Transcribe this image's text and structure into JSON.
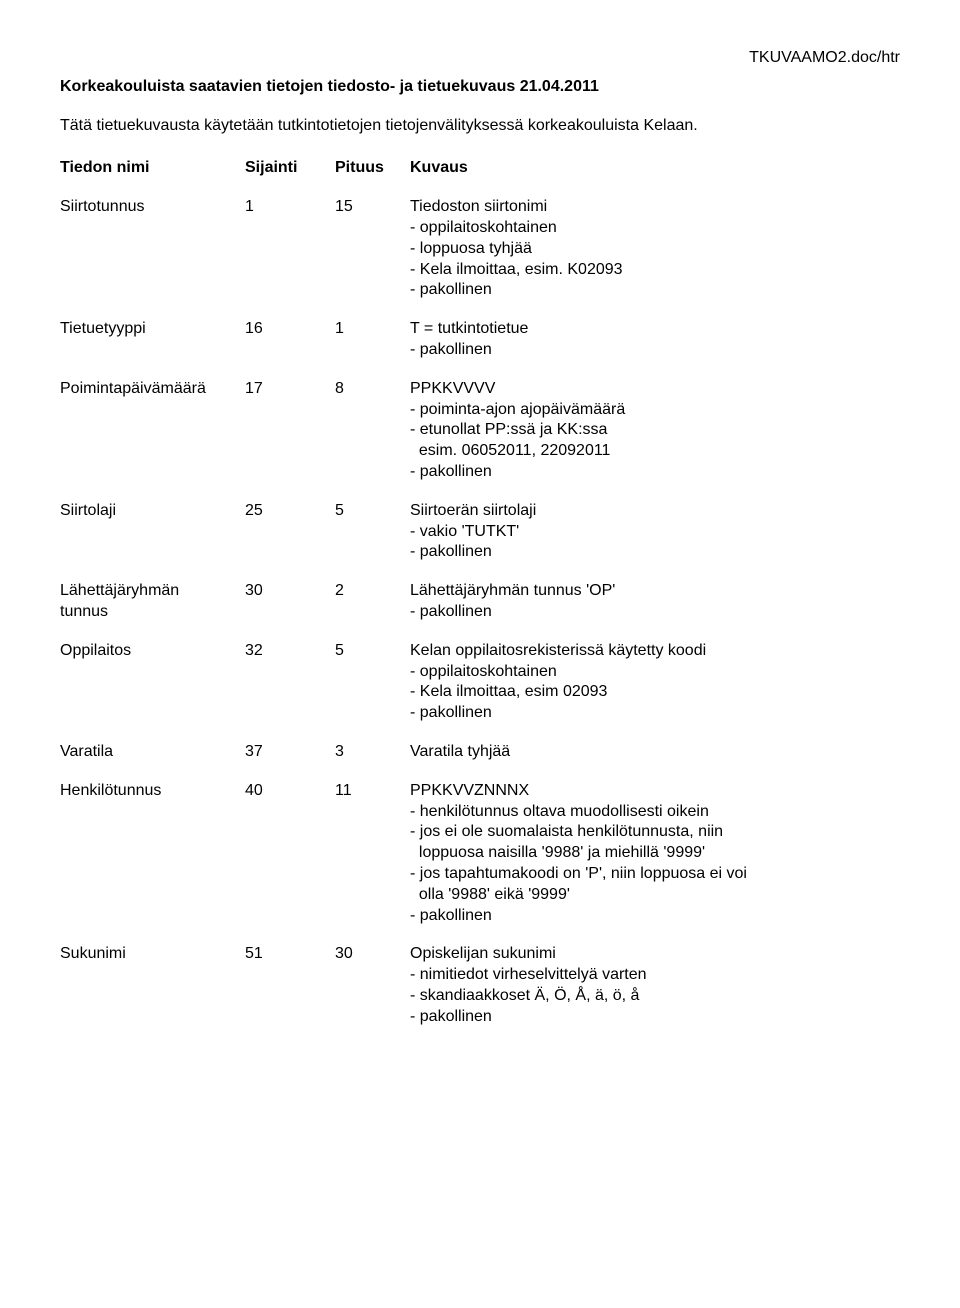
{
  "doc_header": "TKUVAAMO2.doc/htr",
  "title": "Korkeakouluista saatavien tietojen tiedosto- ja tietuekuvaus  21.04.2011",
  "intro": "Tätä tietuekuvausta käytetään tutkintotietojen tietojenvälityksessä korkeakouluista Kelaan.",
  "columns": {
    "c1": "Tiedon nimi",
    "c2": "Sijainti",
    "c3": "Pituus",
    "c4": "Kuvaus"
  },
  "rows": [
    {
      "name": "Siirtotunnus",
      "pos": "1",
      "len": "15",
      "desc": "Tiedoston siirtonimi\n- oppilaitoskohtainen\n- loppuosa tyhjää\n- Kela ilmoittaa, esim. K02093\n- pakollinen"
    },
    {
      "name": "Tietuetyyppi",
      "pos": "16",
      "len": "1",
      "desc": "T = tutkintotietue\n- pakollinen"
    },
    {
      "name": "Poimintapäivämäärä",
      "pos": "17",
      "len": "8",
      "desc": "PPKKVVVV\n- poiminta-ajon ajopäivämäärä\n- etunollat PP:ssä ja KK:ssa\n  esim. 06052011, 22092011\n- pakollinen"
    },
    {
      "name": "Siirtolaji",
      "pos": "25",
      "len": "5",
      "desc": "Siirtoerän siirtolaji\n- vakio 'TUTKT'\n- pakollinen"
    },
    {
      "name": "Lähettäjäryhmän\ntunnus",
      "pos": "30",
      "len": "2",
      "desc": "Lähettäjäryhmän tunnus 'OP'\n- pakollinen"
    },
    {
      "name": "Oppilaitos",
      "pos": "32",
      "len": "5",
      "desc": "Kelan oppilaitosrekisterissä käytetty koodi\n- oppilaitoskohtainen\n- Kela ilmoittaa, esim 02093\n- pakollinen"
    },
    {
      "name": "Varatila",
      "pos": "37",
      "len": "3",
      "desc": "Varatila tyhjää"
    },
    {
      "name": "Henkilötunnus",
      "pos": "40",
      "len": "11",
      "desc": "PPKKVVZNNNX\n- henkilötunnus oltava muodollisesti oikein\n- jos ei ole suomalaista henkilötunnusta, niin\n  loppuosa naisilla '9988' ja miehillä '9999'\n- jos tapahtumakoodi on 'P', niin loppuosa ei voi\n  olla '9988' eikä '9999'\n- pakollinen"
    },
    {
      "name": "Sukunimi",
      "pos": "51",
      "len": "30",
      "desc": "Opiskelijan sukunimi\n- nimitiedot virheselvittelyä varten\n- skandiaakkoset Ä, Ö, Å, ä, ö, å\n- pakollinen"
    }
  ]
}
